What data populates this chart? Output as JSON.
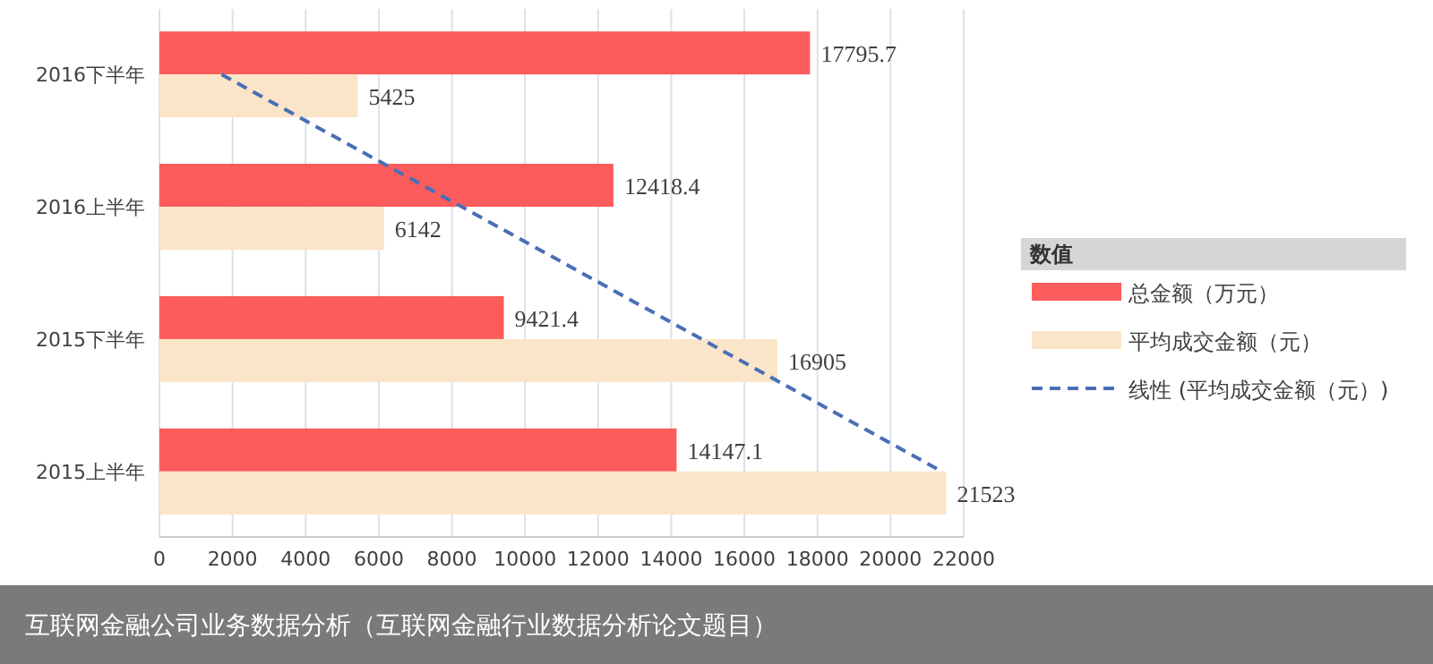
{
  "chart_data": {
    "type": "bar",
    "orientation": "horizontal",
    "categories": [
      "2016下半年",
      "2016上半年",
      "2015下半年",
      "2015上半年"
    ],
    "series": [
      {
        "name": "总金额（万元）",
        "color": "#fc5c5c",
        "values": [
          17795.7,
          12418.4,
          9421.4,
          14147.1
        ],
        "value_labels": [
          "17795.7",
          "12418.4",
          "9421.4",
          "14147.1"
        ]
      },
      {
        "name": "平均成交金额（元）",
        "color": "#fbe5c8",
        "values": [
          5425,
          6142,
          16905,
          21523
        ],
        "value_labels": [
          "5425",
          "6142",
          "16905",
          "21523"
        ]
      },
      {
        "name": "线性 (平均成交金额（元）)",
        "type": "line",
        "line_style": "dashed",
        "color": "#4a6fb5",
        "values": [
          1700,
          8270,
          14830,
          21400
        ]
      }
    ],
    "xlim": [
      0,
      22000
    ],
    "xticks": [
      0,
      2000,
      4000,
      6000,
      8000,
      10000,
      12000,
      14000,
      16000,
      18000,
      20000,
      22000
    ],
    "grid": "x",
    "legend": "right",
    "legend_title": "数值",
    "annotations": [
      "互联网金融公司业务数据分析（互联网金融行业数据分析论文题目）"
    ]
  }
}
